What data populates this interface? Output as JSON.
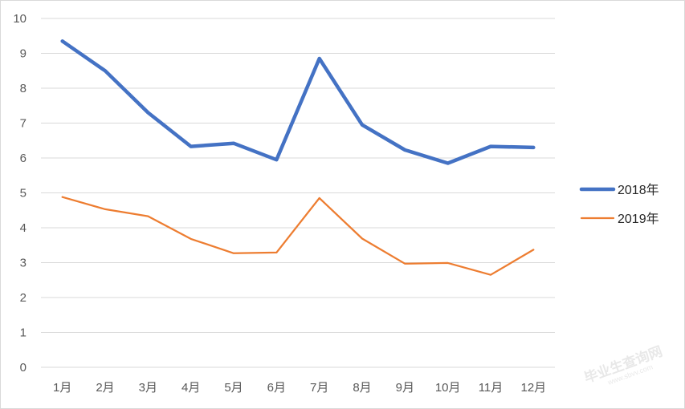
{
  "chart_data": {
    "type": "line",
    "categories": [
      "1月",
      "2月",
      "3月",
      "4月",
      "5月",
      "6月",
      "7月",
      "8月",
      "9月",
      "10月",
      "11月",
      "12月"
    ],
    "ylim": [
      0,
      10
    ],
    "yticks": [
      "0",
      "1",
      "2",
      "3",
      "4",
      "5",
      "6",
      "7",
      "8",
      "9",
      "10"
    ],
    "grid": true,
    "legend_position": "right",
    "series": [
      {
        "name": "2018年",
        "color": "#4472C4",
        "values": [
          9.35,
          8.5,
          7.3,
          6.33,
          6.42,
          5.95,
          8.85,
          6.95,
          6.23,
          5.85,
          6.33,
          6.3
        ]
      },
      {
        "name": "2019年",
        "color": "#ED7D31",
        "values": [
          4.88,
          4.53,
          4.33,
          3.68,
          3.27,
          3.29,
          4.85,
          3.69,
          2.97,
          2.99,
          2.65,
          3.37
        ]
      }
    ]
  },
  "watermark": {
    "text": "毕业生查询网",
    "subtext": "www.sbvv.com"
  }
}
